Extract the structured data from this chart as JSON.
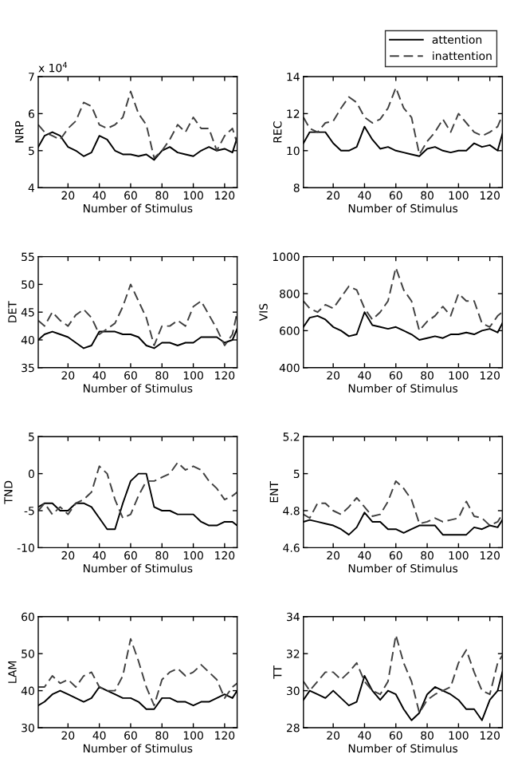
{
  "chart_data": [
    {
      "type": "line",
      "xlabel": "Number of Stimulus",
      "ylabel": "NRP",
      "annotations": [
        "x 10$^{4}$"
      ],
      "x": [
        1,
        5,
        10,
        15,
        20,
        25,
        30,
        35,
        40,
        45,
        50,
        55,
        60,
        65,
        70,
        75,
        80,
        85,
        90,
        95,
        100,
        105,
        110,
        115,
        120,
        125,
        128
      ],
      "xlim": [
        1,
        128
      ],
      "xticks": [
        20,
        40,
        60,
        80,
        100,
        120
      ],
      "ylim": [
        4,
        7
      ],
      "yticks": [
        4,
        5,
        6,
        7
      ],
      "series": [
        {
          "color": "#000000",
          "line_style": "solid",
          "values": [
            5.1,
            5.4,
            5.5,
            5.4,
            5.1,
            5.0,
            4.85,
            4.95,
            5.4,
            5.3,
            5.0,
            4.9,
            4.9,
            4.85,
            4.9,
            4.75,
            5.0,
            5.1,
            4.95,
            4.9,
            4.85,
            5.0,
            5.1,
            5.0,
            5.05,
            4.95,
            5.35
          ]
        },
        {
          "color": "#404040",
          "line_style": "dashed",
          "values": [
            5.7,
            5.5,
            5.4,
            5.3,
            5.6,
            5.8,
            6.3,
            6.2,
            5.7,
            5.6,
            5.7,
            5.9,
            6.6,
            6.0,
            5.7,
            4.8,
            5.0,
            5.3,
            5.7,
            5.5,
            5.9,
            5.6,
            5.6,
            5.0,
            5.4,
            5.6,
            5.2
          ]
        }
      ]
    },
    {
      "type": "line",
      "xlabel": "Number of Stimulus",
      "ylabel": "REC",
      "legend": "top right",
      "x": [
        1,
        5,
        10,
        15,
        20,
        25,
        30,
        35,
        40,
        45,
        50,
        55,
        60,
        65,
        70,
        75,
        80,
        85,
        90,
        95,
        100,
        105,
        110,
        115,
        120,
        125,
        128
      ],
      "xlim": [
        1,
        128
      ],
      "xticks": [
        20,
        40,
        60,
        80,
        100,
        120
      ],
      "ylim": [
        8,
        14
      ],
      "yticks": [
        8,
        10,
        12,
        14
      ],
      "series": [
        {
          "name": "attention",
          "color": "#000000",
          "line_style": "solid",
          "values": [
            10.4,
            11.0,
            11.0,
            11.0,
            10.4,
            10.0,
            10.0,
            10.2,
            11.3,
            10.6,
            10.1,
            10.2,
            10.0,
            9.9,
            9.8,
            9.7,
            10.1,
            10.2,
            10.0,
            9.9,
            10.0,
            10.0,
            10.4,
            10.2,
            10.3,
            10.0,
            10.9
          ]
        },
        {
          "name": "inattention",
          "color": "#404040",
          "line_style": "dashed",
          "values": [
            11.8,
            11.2,
            11.0,
            11.5,
            11.6,
            12.3,
            12.9,
            12.6,
            11.8,
            11.5,
            11.7,
            12.3,
            13.4,
            12.3,
            11.8,
            9.8,
            10.5,
            11.0,
            11.7,
            11.0,
            12.0,
            11.5,
            11.0,
            10.8,
            11.0,
            11.3,
            11.9
          ]
        }
      ]
    },
    {
      "type": "line",
      "xlabel": "Number of Stimulus",
      "ylabel": "DET",
      "x": [
        1,
        5,
        10,
        15,
        20,
        25,
        30,
        35,
        40,
        45,
        50,
        55,
        60,
        65,
        70,
        75,
        80,
        85,
        90,
        95,
        100,
        105,
        110,
        115,
        120,
        125,
        128
      ],
      "xlim": [
        1,
        128
      ],
      "xticks": [
        20,
        40,
        60,
        80,
        100,
        120
      ],
      "ylim": [
        35,
        55
      ],
      "yticks": [
        35,
        40,
        45,
        50,
        55
      ],
      "series": [
        {
          "color": "#000000",
          "line_style": "solid",
          "values": [
            40,
            41,
            41.5,
            41,
            40.5,
            39.5,
            38.5,
            39,
            41.5,
            41.5,
            41.5,
            41,
            41,
            40.5,
            39,
            38.5,
            39.5,
            39.5,
            39,
            39.5,
            39.5,
            40.5,
            40.5,
            40.5,
            39.5,
            40,
            42
          ]
        },
        {
          "color": "#404040",
          "line_style": "dashed",
          "values": [
            43.5,
            42.5,
            45,
            43.5,
            42.5,
            44.5,
            45.5,
            44,
            41,
            42,
            43,
            46,
            50,
            47,
            44,
            39,
            42.5,
            42.5,
            43.5,
            42.5,
            46,
            47,
            44.5,
            42,
            39,
            41,
            45
          ]
        }
      ]
    },
    {
      "type": "line",
      "xlabel": "Number of Stimulus",
      "ylabel": "VIS",
      "x": [
        1,
        5,
        10,
        15,
        20,
        25,
        30,
        35,
        40,
        45,
        50,
        55,
        60,
        65,
        70,
        75,
        80,
        85,
        90,
        95,
        100,
        105,
        110,
        115,
        120,
        125,
        128
      ],
      "xlim": [
        1,
        128
      ],
      "xticks": [
        20,
        40,
        60,
        80,
        100,
        120
      ],
      "ylim": [
        400,
        1000
      ],
      "yticks": [
        400,
        600,
        800,
        1000
      ],
      "series": [
        {
          "color": "#000000",
          "line_style": "solid",
          "values": [
            620,
            670,
            680,
            660,
            620,
            600,
            570,
            580,
            700,
            630,
            620,
            610,
            620,
            600,
            580,
            550,
            560,
            570,
            560,
            580,
            580,
            590,
            580,
            600,
            610,
            590,
            640
          ]
        },
        {
          "color": "#404040",
          "line_style": "dashed",
          "values": [
            760,
            720,
            700,
            740,
            720,
            780,
            840,
            820,
            720,
            660,
            700,
            760,
            940,
            820,
            760,
            600,
            650,
            680,
            730,
            680,
            800,
            760,
            760,
            640,
            620,
            680,
            700
          ]
        }
      ]
    },
    {
      "type": "line",
      "xlabel": "Number of Stimulus",
      "ylabel": "TND",
      "x": [
        1,
        5,
        10,
        15,
        20,
        25,
        30,
        35,
        40,
        45,
        50,
        55,
        60,
        65,
        70,
        75,
        80,
        85,
        90,
        95,
        100,
        105,
        110,
        115,
        120,
        125,
        128
      ],
      "xlim": [
        1,
        128
      ],
      "xticks": [
        20,
        40,
        60,
        80,
        100,
        120
      ],
      "ylim": [
        -10,
        5
      ],
      "yticks": [
        -10,
        -5,
        0,
        5
      ],
      "series": [
        {
          "color": "#000000",
          "line_style": "solid",
          "values": [
            -4.5,
            -4,
            -4,
            -5,
            -5,
            -4,
            -4,
            -4.5,
            -6,
            -7.5,
            -7.5,
            -4,
            -1,
            0,
            0,
            -4.5,
            -5,
            -5,
            -5.5,
            -5.5,
            -5.5,
            -6.5,
            -7,
            -7,
            -6.5,
            -6.5,
            -7
          ]
        },
        {
          "color": "#404040",
          "line_style": "dashed",
          "values": [
            -5,
            -4,
            -5.5,
            -4.5,
            -5.5,
            -4,
            -3.5,
            -2.5,
            1,
            0,
            -3.5,
            -6,
            -5.5,
            -3,
            -1,
            -1,
            -0.5,
            0,
            1.5,
            0.5,
            1,
            0.5,
            -1,
            -2,
            -3.5,
            -3,
            -2.5
          ]
        }
      ]
    },
    {
      "type": "line",
      "xlabel": "Number of Stimulus",
      "ylabel": "ENT",
      "x": [
        1,
        5,
        10,
        15,
        20,
        25,
        30,
        35,
        40,
        45,
        50,
        55,
        60,
        65,
        70,
        75,
        80,
        85,
        90,
        95,
        100,
        105,
        110,
        115,
        120,
        125,
        128
      ],
      "xlim": [
        1,
        128
      ],
      "xticks": [
        20,
        40,
        60,
        80,
        100,
        120
      ],
      "ylim": [
        4.6,
        5.2
      ],
      "yticks": [
        4.6,
        4.8,
        5,
        5.2
      ],
      "series": [
        {
          "color": "#000000",
          "line_style": "solid",
          "values": [
            4.74,
            4.75,
            4.74,
            4.73,
            4.72,
            4.7,
            4.67,
            4.71,
            4.79,
            4.74,
            4.74,
            4.7,
            4.7,
            4.68,
            4.7,
            4.72,
            4.72,
            4.72,
            4.67,
            4.67,
            4.67,
            4.67,
            4.71,
            4.7,
            4.72,
            4.71,
            4.75
          ]
        },
        {
          "color": "#404040",
          "line_style": "dashed",
          "values": [
            4.78,
            4.76,
            4.84,
            4.84,
            4.8,
            4.78,
            4.82,
            4.87,
            4.82,
            4.77,
            4.78,
            4.85,
            4.96,
            4.92,
            4.86,
            4.73,
            4.74,
            4.76,
            4.74,
            4.75,
            4.76,
            4.85,
            4.77,
            4.76,
            4.72,
            4.74,
            4.78
          ]
        }
      ]
    },
    {
      "type": "line",
      "xlabel": "Number of Stimulus",
      "ylabel": "LAM",
      "x": [
        1,
        5,
        10,
        15,
        20,
        25,
        30,
        35,
        40,
        45,
        50,
        55,
        60,
        65,
        70,
        75,
        80,
        85,
        90,
        95,
        100,
        105,
        110,
        115,
        120,
        125,
        128
      ],
      "xlim": [
        1,
        128
      ],
      "xticks": [
        20,
        40,
        60,
        80,
        100,
        120
      ],
      "ylim": [
        30,
        60
      ],
      "yticks": [
        30,
        40,
        50,
        60
      ],
      "series": [
        {
          "color": "#000000",
          "line_style": "solid",
          "values": [
            36,
            37,
            39,
            40,
            39,
            38,
            37,
            38,
            41,
            40,
            39,
            38,
            38,
            37,
            35,
            35,
            38,
            38,
            37,
            37,
            36,
            37,
            37,
            38,
            39,
            38,
            40
          ]
        },
        {
          "color": "#404040",
          "line_style": "dashed",
          "values": [
            41,
            41,
            44,
            42,
            43,
            41,
            44,
            45,
            41,
            40,
            40,
            44,
            54,
            48,
            41,
            36,
            43,
            45,
            46,
            44,
            45,
            47,
            45,
            43,
            38,
            41,
            42
          ]
        }
      ]
    },
    {
      "type": "line",
      "xlabel": "Number of Stimulus",
      "ylabel": "TT",
      "x": [
        1,
        5,
        10,
        15,
        20,
        25,
        30,
        35,
        40,
        45,
        50,
        55,
        60,
        65,
        70,
        75,
        80,
        85,
        90,
        95,
        100,
        105,
        110,
        115,
        120,
        125,
        128
      ],
      "xlim": [
        1,
        128
      ],
      "xticks": [
        20,
        40,
        60,
        80,
        100,
        120
      ],
      "ylim": [
        28,
        34
      ],
      "yticks": [
        28,
        30,
        32,
        34
      ],
      "series": [
        {
          "color": "#000000",
          "line_style": "solid",
          "values": [
            29.5,
            30,
            29.8,
            29.6,
            30,
            29.6,
            29.2,
            29.4,
            30.8,
            30,
            29.5,
            30,
            29.8,
            29,
            28.4,
            28.8,
            29.8,
            30.2,
            30,
            29.8,
            29.5,
            29,
            29,
            28.4,
            29.5,
            30,
            31
          ]
        },
        {
          "color": "#404040",
          "line_style": "dashed",
          "values": [
            30.5,
            30,
            30.5,
            31,
            31,
            30.6,
            31,
            31.5,
            30.5,
            30,
            29.8,
            30.5,
            33,
            31.5,
            30.5,
            28.8,
            29.5,
            29.8,
            30,
            30.2,
            31.5,
            32.2,
            31,
            30,
            29.8,
            31.5,
            31.9
          ]
        }
      ]
    }
  ]
}
